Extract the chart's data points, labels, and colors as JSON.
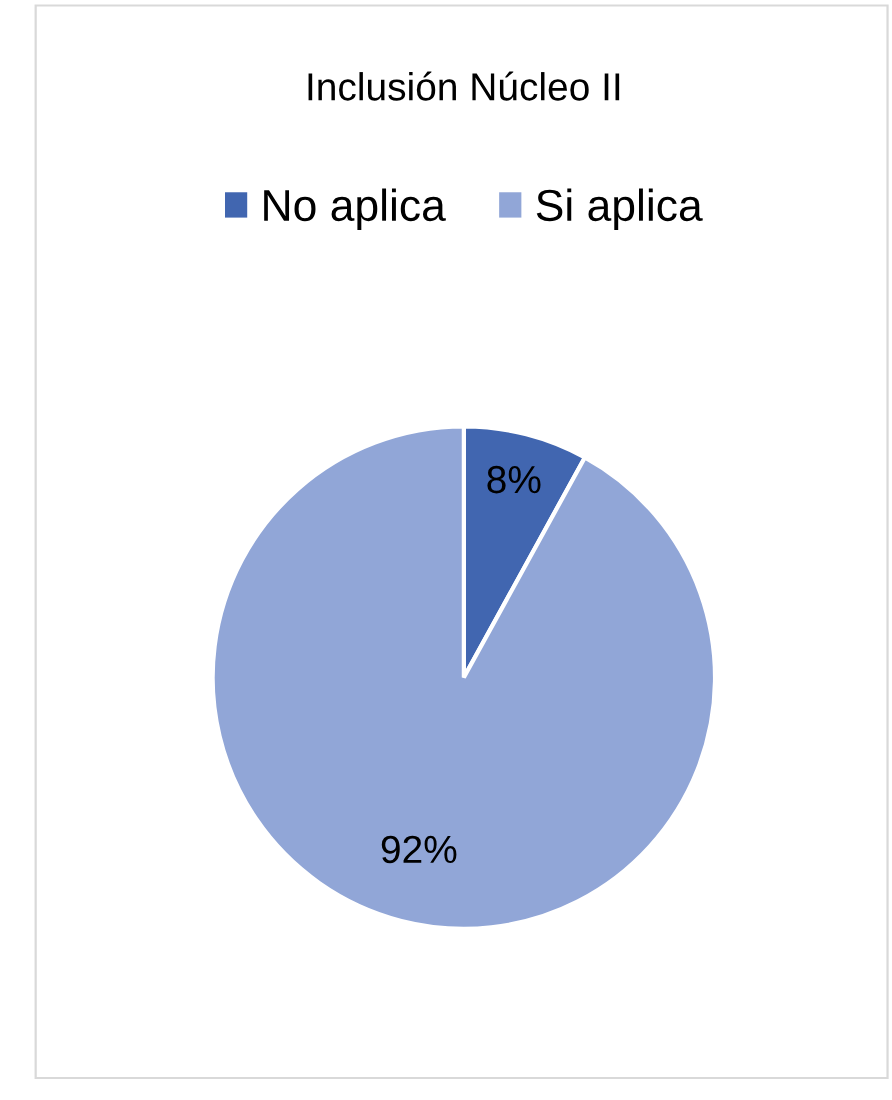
{
  "chart_data": {
    "type": "pie",
    "title": "Inclusión Núcleo II",
    "categories": [
      "No aplica",
      "Si aplica"
    ],
    "values": [
      8,
      92
    ],
    "colors": [
      "#4166b0",
      "#91a6d7"
    ],
    "value_labels": [
      "8%",
      "92%"
    ],
    "legend": "top"
  }
}
